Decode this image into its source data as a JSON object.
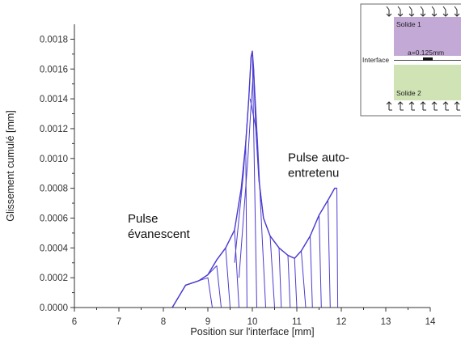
{
  "chart_data": {
    "type": "line",
    "title": "",
    "xlabel": "Position sur l'interface [mm]",
    "ylabel": "Glissement cumulé  [mm]",
    "xlim": [
      6,
      14
    ],
    "ylim": [
      0,
      0.0019
    ],
    "x_ticks": [
      6,
      7,
      8,
      9,
      10,
      11,
      12,
      13,
      14
    ],
    "x_tick_labels": [
      "6",
      "7",
      "8",
      "9",
      "10",
      "11",
      "12",
      "13",
      "14"
    ],
    "y_ticks": [
      0,
      0.0002,
      0.0004,
      0.0006,
      0.0008,
      0.001,
      0.0012,
      0.0014,
      0.0016,
      0.0018
    ],
    "y_tick_labels": [
      "0.0000",
      "0.0002",
      "0.0004",
      "0.0006",
      "0.0008",
      "0.0010",
      "0.0012",
      "0.0014",
      "0.0016",
      "0.0018"
    ],
    "grid": false,
    "line_color": "#4b3ccf",
    "envelope": {
      "x": [
        8.2,
        8.5,
        8.8,
        9.0,
        9.2,
        9.4,
        9.6,
        9.75,
        9.85,
        9.92,
        9.97,
        10.0,
        10.03,
        10.08,
        10.15,
        10.25,
        10.4,
        10.6,
        10.8,
        10.95,
        11.1,
        11.3,
        11.5,
        11.7,
        11.85,
        11.9
      ],
      "y": [
        0.0,
        0.00015,
        0.00018,
        0.00022,
        0.00032,
        0.0004,
        0.00052,
        0.0008,
        0.0011,
        0.0014,
        0.00168,
        0.00172,
        0.0016,
        0.0012,
        0.00085,
        0.0006,
        0.00048,
        0.0004,
        0.00035,
        0.00033,
        0.00038,
        0.00048,
        0.00062,
        0.00072,
        0.0008,
        0.0008
      ]
    },
    "pulse_profiles": [
      {
        "x": [
          8.2,
          8.5,
          8.8,
          9.0,
          9.1
        ],
        "y": [
          0.0,
          0.00015,
          0.00018,
          0.0002,
          0.0
        ]
      },
      {
        "x": [
          8.2,
          8.5,
          8.8,
          9.0,
          9.2,
          9.3
        ],
        "y": [
          0.0,
          0.00015,
          0.00018,
          0.00022,
          0.00028,
          0.0
        ]
      },
      {
        "x": [
          8.2,
          8.5,
          8.8,
          9.0,
          9.2,
          9.4,
          9.5
        ],
        "y": [
          0.0,
          0.00015,
          0.00018,
          0.00022,
          0.00032,
          0.0004,
          0.0
        ]
      },
      {
        "x": [
          8.2,
          8.5,
          8.8,
          9.0,
          9.2,
          9.4,
          9.6,
          9.7
        ],
        "y": [
          0.0,
          0.00015,
          0.00018,
          0.00022,
          0.00032,
          0.0004,
          0.00052,
          0.0
        ]
      },
      {
        "x": [
          8.2,
          8.5,
          8.8,
          9.0,
          9.2,
          9.4,
          9.6,
          9.75,
          9.85,
          9.88
        ],
        "y": [
          0.0,
          0.00015,
          0.00018,
          0.00022,
          0.00032,
          0.0004,
          0.00052,
          0.0008,
          0.0011,
          0.0
        ]
      },
      {
        "x": [
          9.6,
          9.8,
          9.92,
          9.97,
          10.0,
          10.1
        ],
        "y": [
          0.0003,
          0.0009,
          0.0014,
          0.00168,
          0.00172,
          0.0
        ]
      },
      {
        "x": [
          9.7,
          9.9,
          9.98,
          10.03,
          10.12,
          10.2,
          10.3
        ],
        "y": [
          0.0002,
          0.001,
          0.0014,
          0.0016,
          0.0011,
          0.0006,
          0.0
        ]
      },
      {
        "x": [
          9.95,
          10.08,
          10.15,
          10.25,
          10.4,
          10.5
        ],
        "y": [
          0.0014,
          0.0012,
          0.00085,
          0.0006,
          0.00048,
          0.0
        ]
      },
      {
        "x": [
          10.15,
          10.25,
          10.4,
          10.6,
          10.65
        ],
        "y": [
          0.00085,
          0.0006,
          0.00048,
          0.0004,
          0.0
        ]
      },
      {
        "x": [
          10.4,
          10.6,
          10.8,
          10.85
        ],
        "y": [
          0.00048,
          0.0004,
          0.00035,
          0.0
        ]
      },
      {
        "x": [
          10.6,
          10.8,
          10.95,
          11.0
        ],
        "y": [
          0.0004,
          0.00035,
          0.00033,
          0.0
        ]
      },
      {
        "x": [
          10.8,
          10.95,
          11.1,
          11.2
        ],
        "y": [
          0.00035,
          0.00033,
          0.00038,
          0.0
        ]
      },
      {
        "x": [
          10.95,
          11.1,
          11.3,
          11.35
        ],
        "y": [
          0.00033,
          0.00038,
          0.00048,
          0.0
        ]
      },
      {
        "x": [
          11.1,
          11.3,
          11.5,
          11.55
        ],
        "y": [
          0.00038,
          0.00048,
          0.00062,
          0.0
        ]
      },
      {
        "x": [
          11.3,
          11.5,
          11.7,
          11.75
        ],
        "y": [
          0.00048,
          0.00062,
          0.00072,
          0.0
        ]
      },
      {
        "x": [
          11.5,
          11.7,
          11.85,
          11.9,
          11.92
        ],
        "y": [
          0.00062,
          0.00072,
          0.0008,
          0.0008,
          0.0
        ]
      }
    ],
    "annotations": [
      {
        "lines": [
          "Pulse",
          "évanescent"
        ],
        "x": 7.2,
        "y": 0.00057
      },
      {
        "lines": [
          "Pulse auto-",
          "entretenu"
        ],
        "x": 10.8,
        "y": 0.00098
      }
    ]
  },
  "inset": {
    "solid_top_label": "Solide 1",
    "solid_bottom_label": "Solide 2",
    "interface_label": "Interface",
    "dimension_label": "a=0.125mm",
    "solid_top_color": "#c3a9d6",
    "solid_bottom_color": "#cfe3b5"
  }
}
